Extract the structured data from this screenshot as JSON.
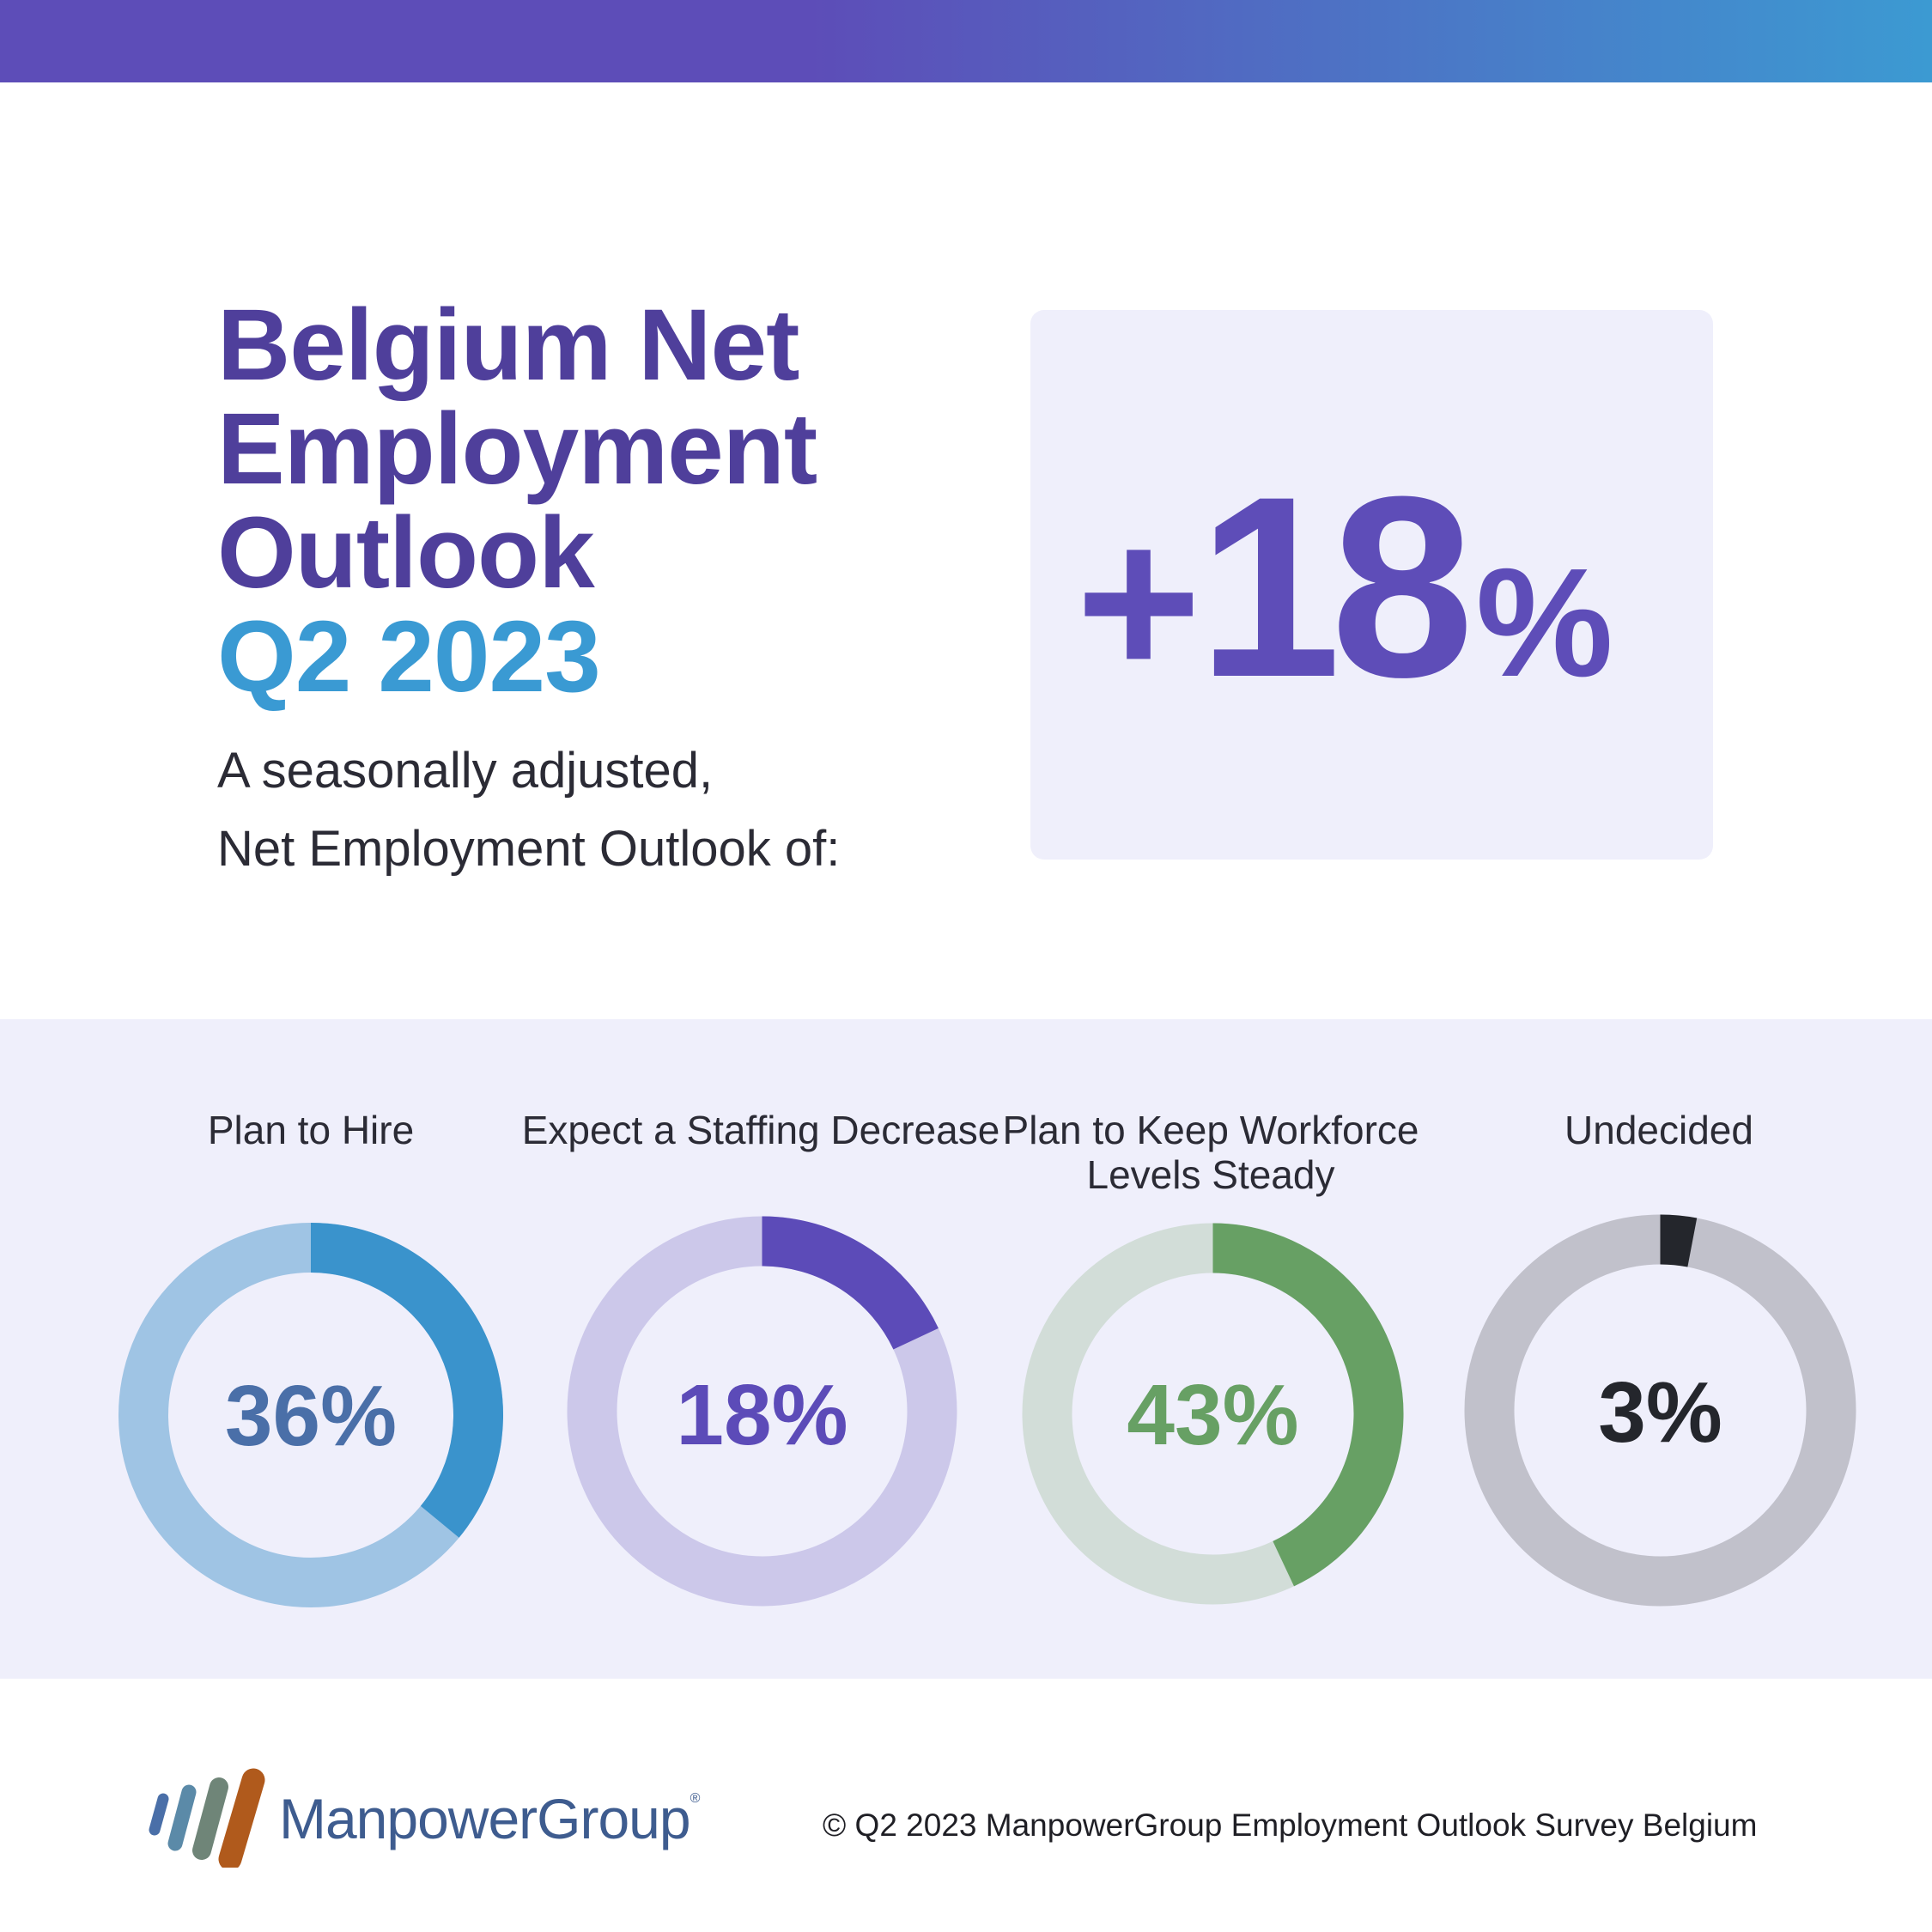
{
  "header": {
    "title_lines": [
      "Belgium Net",
      "Employment",
      "Outlook"
    ],
    "period": "Q2 2023",
    "subtitle_lines": [
      "A seasonally adjusted,",
      "Net Employment Outlook of:"
    ]
  },
  "headline_value": {
    "sign": "+",
    "number": "18",
    "unit": "%"
  },
  "colors": {
    "top_bar_start": "#5d4db8",
    "top_bar_end": "#3c9ad2",
    "title": "#4f3f9b",
    "period": "#3a9ad3",
    "card_bg": "#efeffb",
    "headline_value": "#5e4db8"
  },
  "chart_data": [
    {
      "type": "pie",
      "label": "Plan to Hire",
      "value": 36,
      "display": "36%",
      "color": "#3a93cc",
      "track": "#9fc4e4",
      "text_color": "#4a6fa8"
    },
    {
      "type": "pie",
      "label": "Expect a Staffing Decrease",
      "value": 18,
      "display": "18%",
      "color": "#5c4bb8",
      "track": "#ccc8ea",
      "text_color": "#5c4bb8"
    },
    {
      "type": "pie",
      "label": "Plan to Keep Workforce Levels Steady",
      "value": 43,
      "display": "43%",
      "color": "#67a064",
      "track": "#d2ddd8",
      "text_color": "#67a064"
    },
    {
      "type": "pie",
      "label": "Undecided",
      "value": 3,
      "display": "3%",
      "color": "#24262c",
      "track": "#c1c1cb",
      "text_color": "#24262c"
    }
  ],
  "footer": {
    "brand": "ManpowerGroup",
    "registered_mark": "®",
    "copyright": "© Q2 2023 ManpowerGroup Employment Outlook Survey Belgium",
    "logo_colors": [
      "#4a6fa8",
      "#5b8aa8",
      "#6f8578",
      "#b05a1c"
    ]
  }
}
